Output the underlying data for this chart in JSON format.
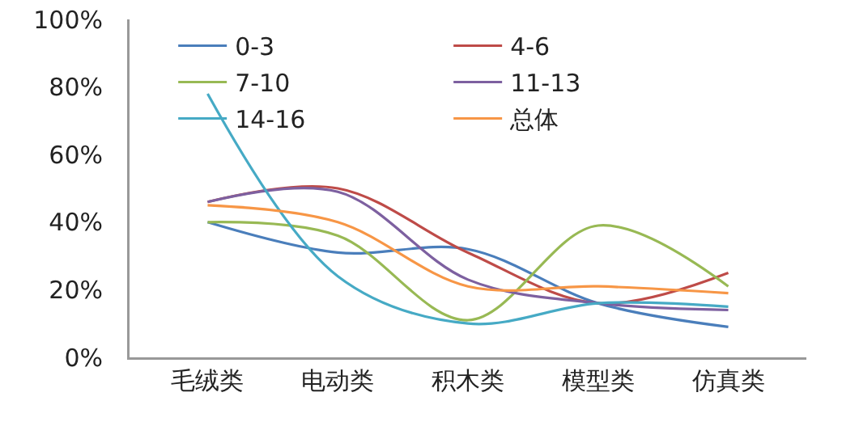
{
  "chart_data": {
    "type": "line",
    "categories": [
      "毛绒类",
      "电动类",
      "积木类",
      "模型类",
      "仿真类"
    ],
    "series": [
      {
        "name": "0-3",
        "color": "#4a7ebb",
        "values": [
          40,
          31,
          32,
          16,
          9
        ]
      },
      {
        "name": "4-6",
        "color": "#be4b48",
        "values": [
          46,
          50,
          31,
          16,
          25
        ]
      },
      {
        "name": "7-10",
        "color": "#98b954",
        "values": [
          40,
          36,
          11,
          39,
          21
        ]
      },
      {
        "name": "11-13",
        "color": "#7d60a0",
        "values": [
          46,
          49,
          23,
          16,
          14
        ]
      },
      {
        "name": "14-16",
        "color": "#46aac5",
        "values": [
          78,
          24,
          10,
          16,
          15
        ]
      },
      {
        "name": "总体",
        "color": "#f79646",
        "values": [
          45,
          40,
          21,
          21,
          19
        ]
      }
    ],
    "ylim": [
      0,
      100
    ],
    "yticks": [
      {
        "value": 0,
        "label": "0%"
      },
      {
        "value": 20,
        "label": "20%"
      },
      {
        "value": 40,
        "label": "40%"
      },
      {
        "value": 60,
        "label": "60%"
      },
      {
        "value": 80,
        "label": "80%"
      },
      {
        "value": 100,
        "label": "100%"
      }
    ],
    "grid": false,
    "legend": "top",
    "marker": "none",
    "line_style": "solid"
  }
}
